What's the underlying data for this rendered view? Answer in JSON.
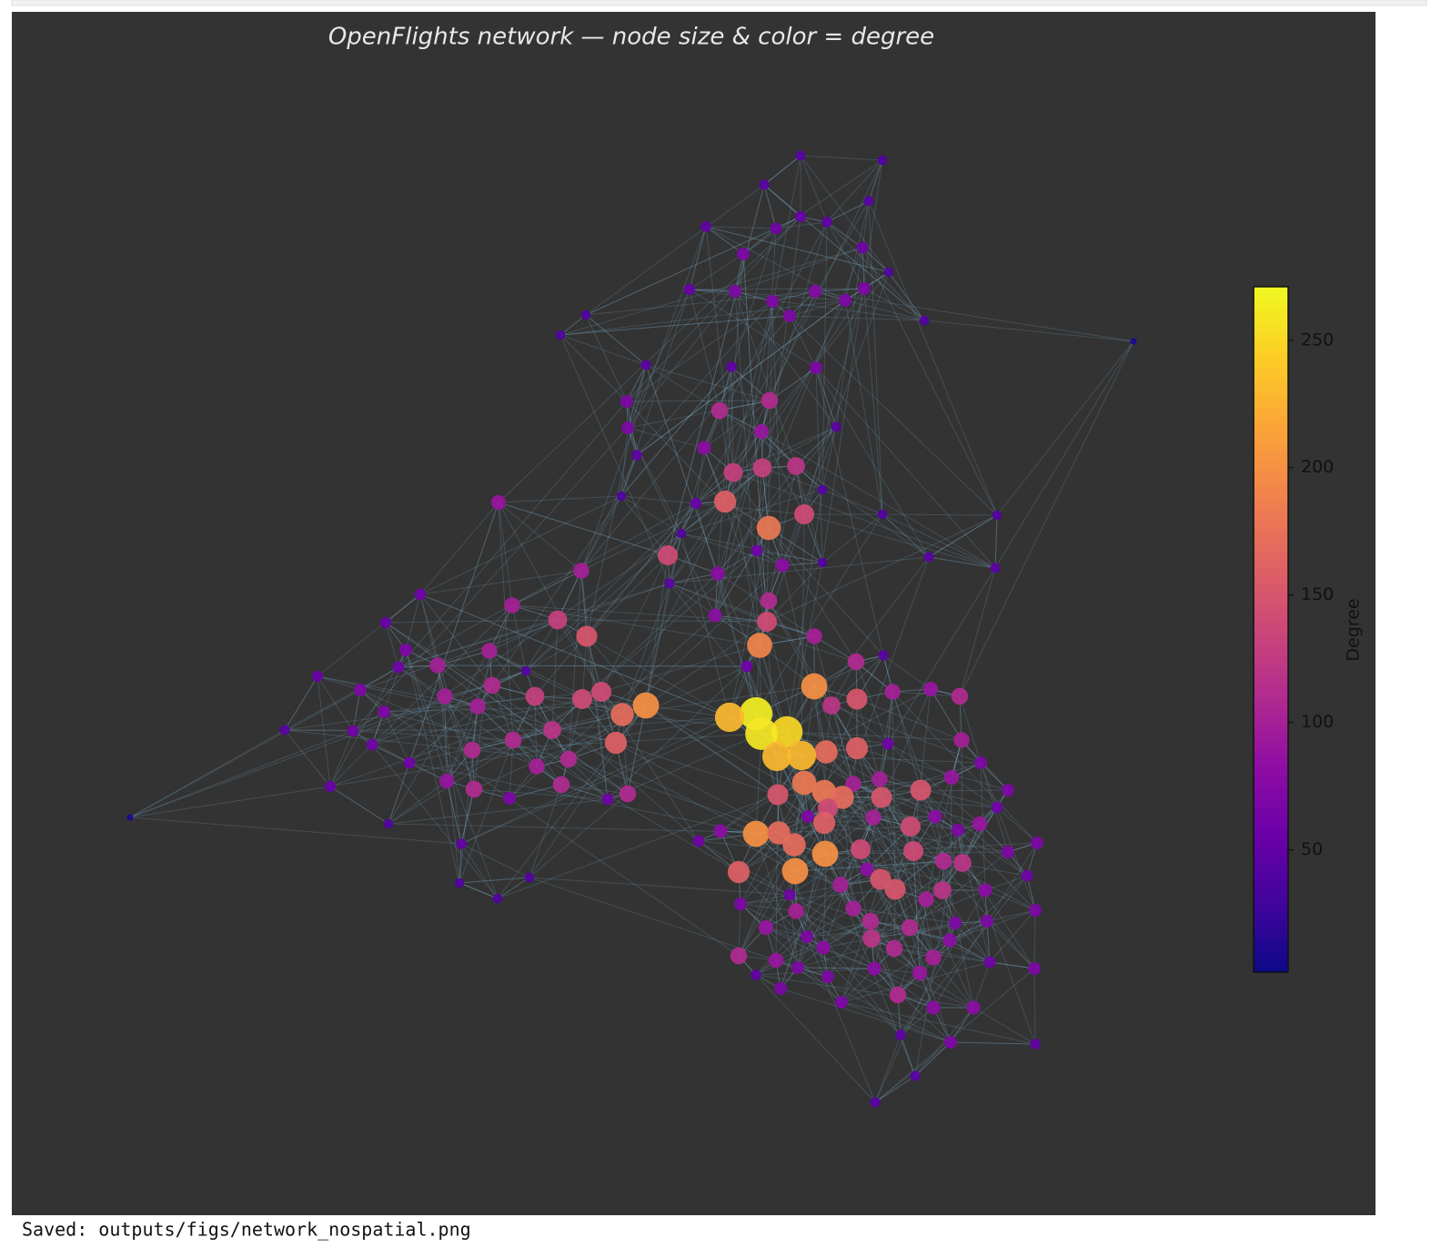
{
  "chart_data": {
    "type": "network",
    "title": "OpenFlights network — node size & color = degree",
    "colormap": "plasma",
    "colorbar": {
      "label": "Degree",
      "lim": [
        2,
        271
      ],
      "ticks": [
        50,
        100,
        150,
        200,
        250
      ]
    },
    "nodes": [
      45,
      40,
      45,
      45,
      50,
      60,
      55,
      50,
      60,
      70,
      40,
      55,
      70,
      70,
      75,
      70,
      70,
      70,
      40,
      40,
      40,
      10,
      45,
      50,
      70,
      70,
      110,
      110,
      70,
      90,
      45,
      80,
      50,
      130,
      130,
      120,
      40,
      90,
      40,
      55,
      160,
      140,
      180,
      40,
      40,
      40,
      60,
      80,
      45,
      40,
      45,
      140,
      100,
      80,
      45,
      60,
      100,
      110,
      130,
      80,
      140,
      150,
      55,
      100,
      70,
      100,
      190,
      100,
      60,
      40,
      110,
      45,
      60,
      55,
      200,
      70,
      110,
      130,
      140,
      140,
      100,
      90,
      100,
      110,
      150,
      120,
      200,
      100,
      170,
      70,
      265,
      230,
      45,
      60,
      120,
      250,
      260,
      110,
      160,
      60,
      110,
      60,
      160,
      170,
      230,
      230,
      100,
      110,
      60,
      100,
      70,
      100,
      100,
      180,
      90,
      90,
      110,
      55,
      110,
      180,
      170,
      150,
      150,
      150,
      70,
      70,
      110,
      60,
      140,
      60,
      10,
      70,
      100,
      80,
      40,
      160,
      140,
      70,
      90,
      80,
      200,
      170,
      70,
      60,
      50,
      170,
      140,
      140,
      70,
      200,
      110,
      120,
      160,
      200,
      80,
      60,
      40,
      150,
      40,
      100,
      150,
      120,
      80,
      60,
      100,
      70,
      40,
      100,
      70,
      100,
      70,
      110,
      70,
      110,
      90,
      80,
      70,
      120,
      110,
      80,
      100,
      110,
      60,
      90,
      80,
      70,
      70,
      50,
      90,
      70,
      70,
      110,
      70,
      80,
      80,
      50,
      70,
      50,
      45,
      45
    ]
  },
  "output_text": "Saved: outputs/figs/network_nospatial.png"
}
